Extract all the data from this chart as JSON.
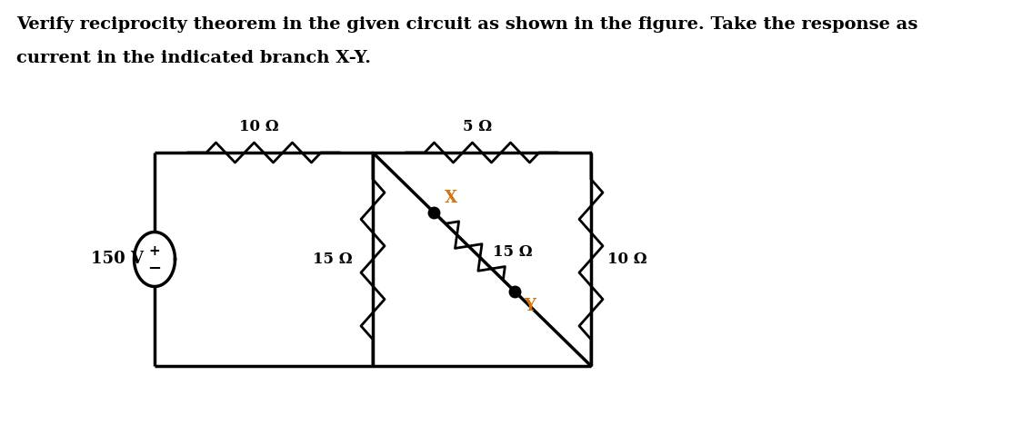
{
  "title_line1": "Verify reciprocity theorem in the given circuit as shown in the figure. Take the response as",
  "title_line2": "current in the indicated branch X-Y.",
  "background_color": "#ffffff",
  "text_color": "#000000",
  "label_color": "#d4730a",
  "circuit_color": "#000000",
  "voltage_source": "150 V",
  "resistors": {
    "R1": "10 Ω",
    "R2": "5 Ω",
    "R3": "15 Ω",
    "R4": "15 Ω",
    "R5": "10 Ω"
  },
  "TL": [
    1.7,
    3.0
  ],
  "TM": [
    4.1,
    3.0
  ],
  "TR": [
    6.5,
    3.0
  ],
  "BL": [
    1.7,
    0.65
  ],
  "BM": [
    4.1,
    0.65
  ],
  "BR": [
    6.5,
    0.65
  ]
}
